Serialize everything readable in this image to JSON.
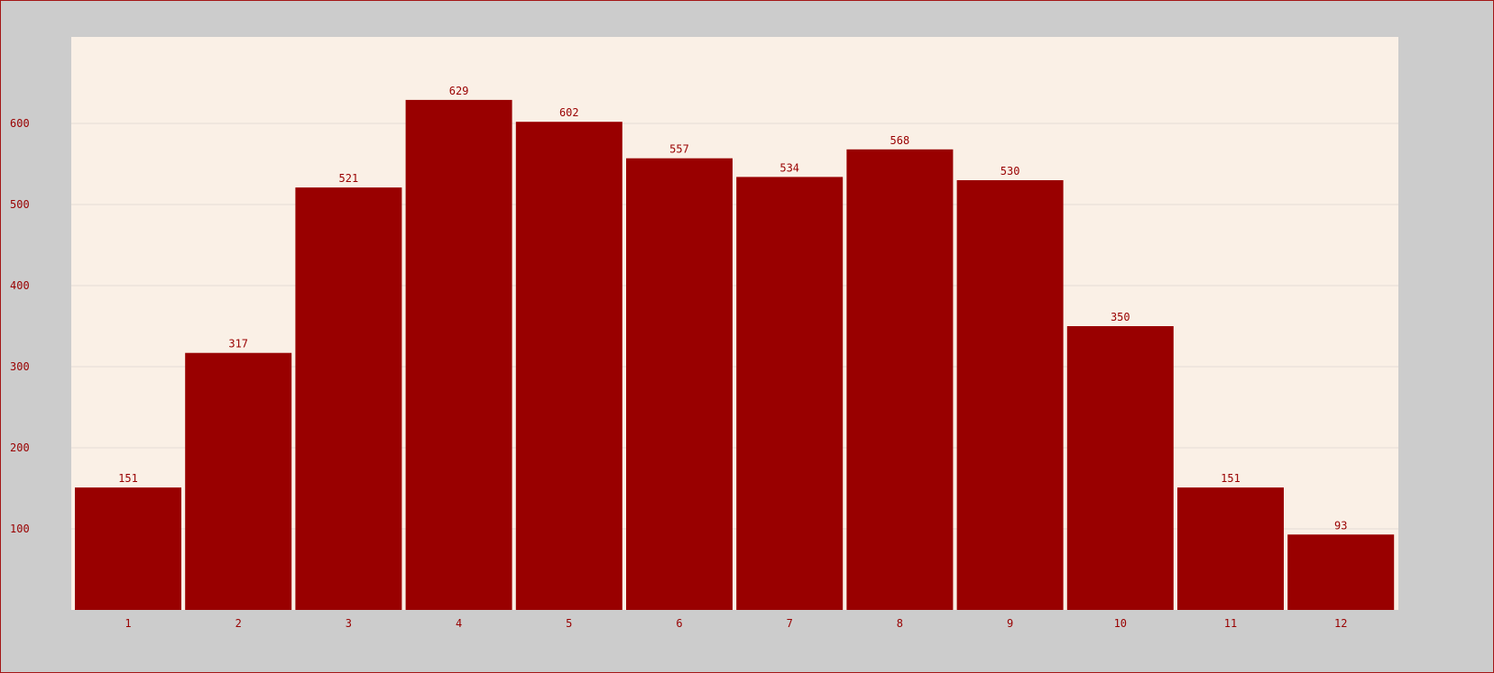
{
  "chart_data": {
    "type": "bar",
    "title": "",
    "xlabel": "",
    "ylabel": "",
    "categories": [
      "1",
      "2",
      "3",
      "4",
      "5",
      "6",
      "7",
      "8",
      "9",
      "10",
      "11",
      "12"
    ],
    "values": [
      151,
      317,
      521,
      629,
      602,
      557,
      534,
      568,
      530,
      350,
      151,
      93
    ],
    "ylim": [
      0,
      700
    ],
    "yticks": [
      100,
      200,
      300,
      400,
      500,
      600
    ],
    "grid": true,
    "data_labels": true,
    "legend": "none"
  },
  "colors": {
    "bar": "#990000",
    "text": "#990000",
    "plot_background": "#faf0e6",
    "outer_background": "#cccccc",
    "border": "#a31515",
    "grid": "#e4ddd6"
  }
}
